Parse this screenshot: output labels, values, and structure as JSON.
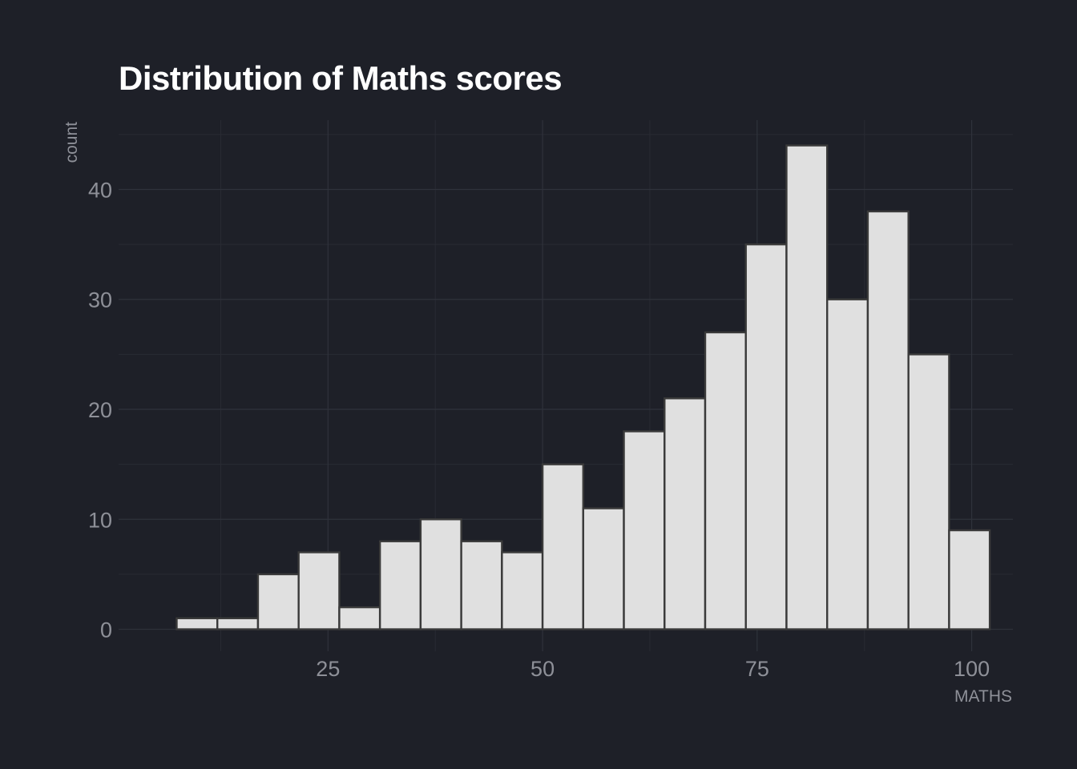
{
  "chart_data": {
    "type": "bar",
    "title": "Distribution of Maths scores",
    "xlabel": "MATHS",
    "ylabel": "count",
    "x_ticks": [
      25,
      50,
      75,
      100
    ],
    "y_ticks": [
      0,
      10,
      20,
      30,
      40
    ],
    "xlim": [
      0.6,
      104.8
    ],
    "ylim": [
      -2,
      46.3
    ],
    "bin_width": 4.737,
    "bin_centers": [
      9.737,
      14.474,
      19.211,
      23.947,
      28.684,
      33.421,
      38.158,
      42.895,
      47.632,
      52.368,
      57.105,
      61.842,
      66.579,
      71.316,
      76.053,
      80.789,
      85.526,
      90.263,
      95.0,
      99.737
    ],
    "values": [
      1,
      1,
      5,
      7,
      2,
      8,
      10,
      8,
      7,
      15,
      11,
      18,
      21,
      27,
      35,
      44,
      30,
      38,
      25,
      9
    ],
    "grid": true,
    "legend": "none",
    "colors": {
      "background": "#1e2028",
      "bar_fill": "#e0e0e0",
      "bar_outline": "#3a3a3a",
      "text": "#8e9098",
      "title": "#ffffff"
    }
  }
}
